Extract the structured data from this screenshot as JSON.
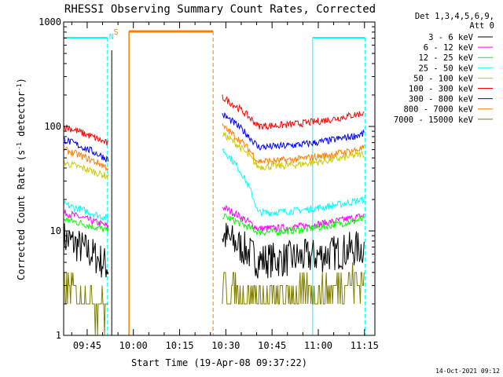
{
  "chart_data": {
    "type": "line",
    "title": "RHESSI Observing Summary Count Rates, Corrected",
    "xlabel": "Start Time (19-Apr-08 09:37:22)",
    "ylabel": "Corrected Count Rate (s⁻¹ detector⁻¹)",
    "ylabel_parts": [
      "Corrected Count Rate (s",
      "-1",
      " detector",
      "-1",
      ")"
    ],
    "yscale": "log",
    "ylim": [
      1,
      1000
    ],
    "xlim_minutes": [
      0,
      101
    ],
    "x_tick_labels": [
      "09:45",
      "10:00",
      "10:15",
      "10:30",
      "10:45",
      "11:00",
      "11:15"
    ],
    "x_tick_minutes": [
      7.63,
      22.63,
      37.63,
      52.63,
      67.63,
      82.63,
      97.63
    ],
    "y_tick_labels": [
      "1",
      "10",
      "100",
      "1000"
    ],
    "y_tick_values": [
      1,
      10,
      100,
      1000
    ],
    "legend_header": [
      "Det 1,3,4,5,6,9,",
      "Att 0"
    ],
    "series": [
      {
        "name": "3 - 6 keV",
        "color": "#000000",
        "segments": [
          [
            0,
            8.5,
            14.5,
            4.5
          ],
          [
            51.5,
            9,
            97.5,
            7
          ]
        ]
      },
      {
        "name": "6 - 12 keV",
        "color": "#ff00ff",
        "segments": [
          [
            0,
            15,
            14.5,
            11
          ],
          [
            51.5,
            17,
            97.5,
            14
          ]
        ]
      },
      {
        "name": "12 - 25 keV",
        "color": "#00ff00",
        "segments": [
          [
            0,
            13,
            14.5,
            10
          ],
          [
            51.5,
            14,
            97.5,
            13
          ]
        ]
      },
      {
        "name": "25 - 50 keV",
        "color": "#00ffff",
        "segments": [
          [
            0,
            18,
            14.5,
            13
          ],
          [
            51.5,
            60,
            97.5,
            20
          ]
        ]
      },
      {
        "name": "50 - 100 keV",
        "color": "#cccc00",
        "segments": [
          [
            0,
            45,
            14.5,
            33
          ],
          [
            51.5,
            85,
            97.5,
            55
          ]
        ]
      },
      {
        "name": "100 - 300 keV",
        "color": "#ff0000",
        "segments": [
          [
            0,
            100,
            14.5,
            68
          ],
          [
            51.5,
            190,
            97.5,
            135
          ]
        ]
      },
      {
        "name": "300 - 800 keV",
        "color": "#0000ff",
        "segments": [
          [
            0,
            75,
            14.5,
            48
          ],
          [
            51.5,
            130,
            97.5,
            85
          ]
        ]
      },
      {
        "name": "800 - 7000 keV",
        "color": "#ff8000",
        "segments": [
          [
            0,
            60,
            14.5,
            40
          ],
          [
            51.5,
            100,
            97.5,
            62
          ]
        ]
      },
      {
        "name": "7000 - 15000 keV",
        "color": "#808000",
        "segments": [
          [
            0,
            3,
            14.5,
            1.7
          ],
          [
            51.5,
            3,
            97.5,
            3.5
          ]
        ]
      }
    ],
    "annotations": [
      {
        "label": "N",
        "color": "#00ffff",
        "x_min": 15.5
      },
      {
        "label": "S",
        "color": "#ff8000",
        "x_min": 17
      }
    ],
    "grid": false,
    "legend_placement": "right"
  },
  "footer_date": "14-Oct-2021 09:12"
}
